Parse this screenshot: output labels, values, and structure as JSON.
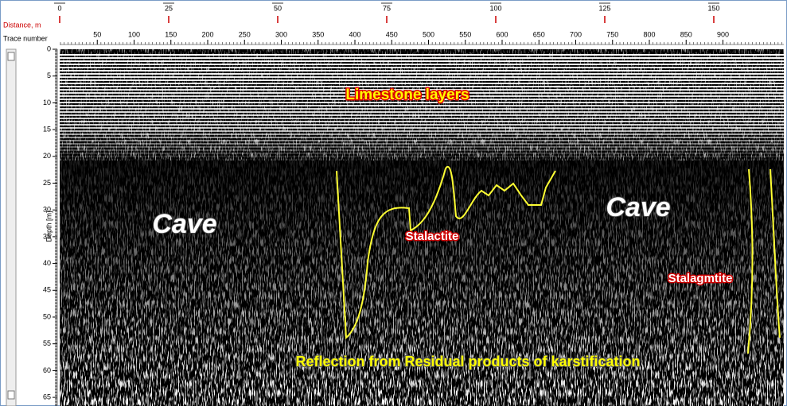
{
  "axes": {
    "distance": {
      "label": "Distance, m",
      "ticks": [
        0,
        25,
        50,
        75,
        100,
        125,
        150
      ]
    },
    "trace": {
      "label": "Trace number",
      "ticks": [
        50,
        100,
        150,
        200,
        250,
        300,
        350,
        400,
        450,
        500,
        550,
        600,
        650,
        700,
        750,
        800,
        850,
        900
      ]
    },
    "depth": {
      "label": "Depth [m]",
      "ticks": [
        0,
        5,
        10,
        15,
        20,
        25,
        30,
        35,
        40,
        45,
        50,
        55,
        60,
        65
      ]
    }
  },
  "annotations": {
    "limestone": "Limestone layers",
    "cave_left": "Cave",
    "cave_right": "Cave",
    "stalactite": "Stalactite",
    "stalagmite": "Stalagmtite",
    "reflection": "Reflection from Residual products of karstification"
  }
}
